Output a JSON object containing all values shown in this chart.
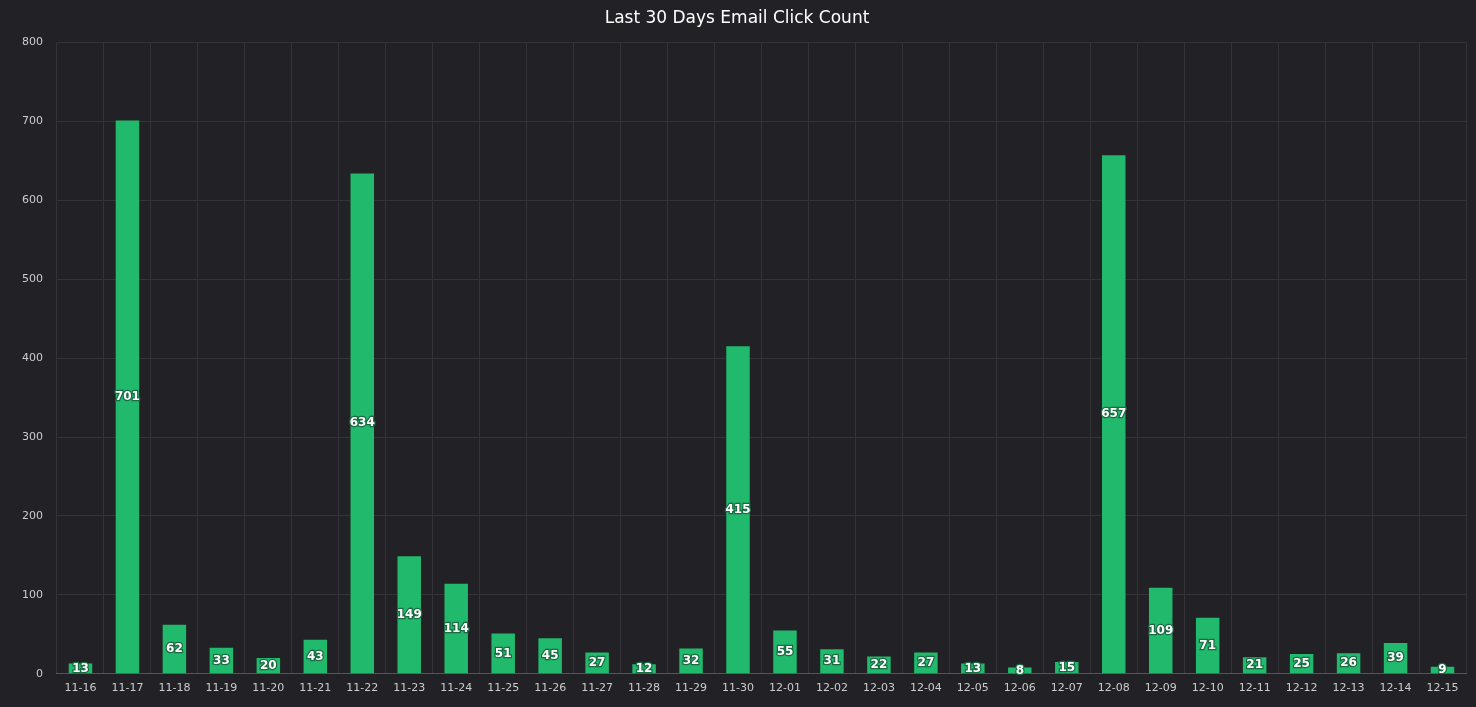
{
  "chart_data": {
    "type": "bar",
    "title": "Last 30 Days Email Click Count",
    "categories": [
      "11-16",
      "11-17",
      "11-18",
      "11-19",
      "11-20",
      "11-21",
      "11-22",
      "11-23",
      "11-24",
      "11-25",
      "11-26",
      "11-27",
      "11-28",
      "11-29",
      "11-30",
      "12-01",
      "12-02",
      "12-03",
      "12-04",
      "12-05",
      "12-06",
      "12-07",
      "12-08",
      "12-09",
      "12-10",
      "12-11",
      "12-12",
      "12-13",
      "12-14",
      "12-15"
    ],
    "values": [
      13,
      701,
      62,
      33,
      20,
      43,
      634,
      149,
      114,
      51,
      45,
      27,
      12,
      32,
      415,
      55,
      31,
      22,
      27,
      13,
      8,
      15,
      657,
      109,
      71,
      21,
      25,
      26,
      39,
      9
    ],
    "color": "#21b96b",
    "ylim": [
      0,
      800
    ],
    "yticks": [
      0,
      100,
      200,
      300,
      400,
      500,
      600,
      700,
      800
    ],
    "grid": true,
    "data_labels": true
  }
}
